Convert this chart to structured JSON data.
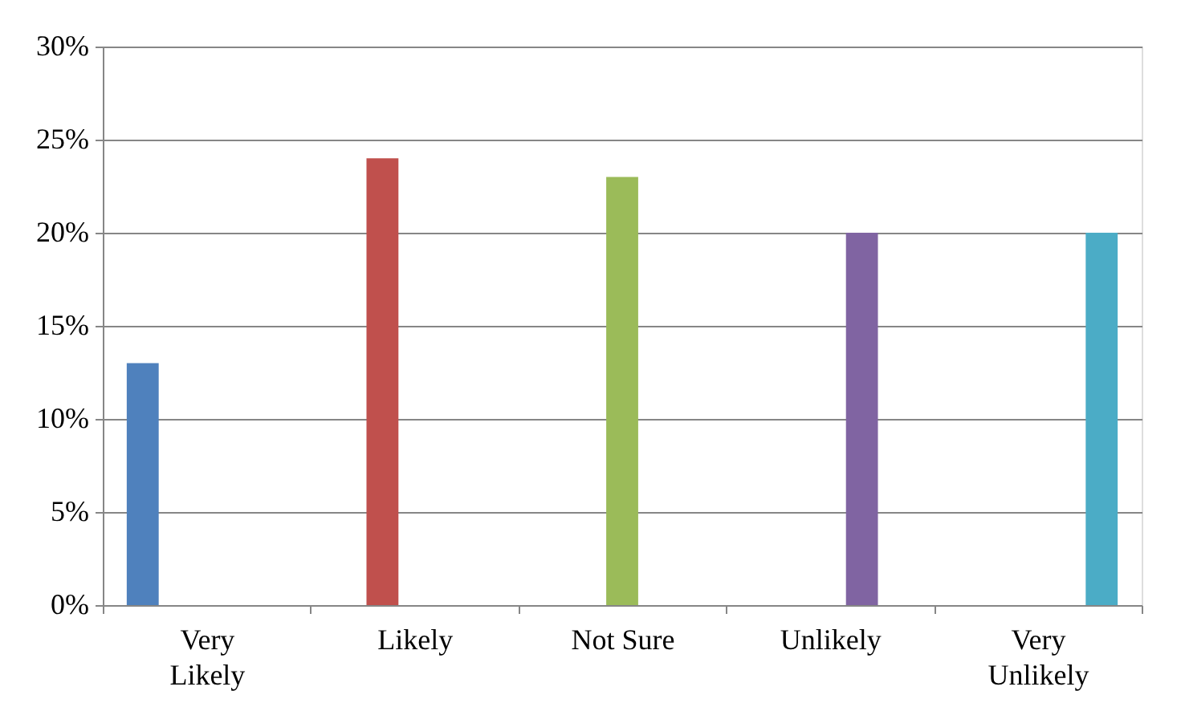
{
  "chart_data": {
    "type": "bar",
    "categories": [
      "Very Likely",
      "Likely",
      "Not Sure",
      "Unlikely",
      "Very Unlikely"
    ],
    "series": [
      {
        "color": "#4f81bd",
        "values": [
          13,
          null,
          null,
          null,
          null
        ]
      },
      {
        "color": "#c0504d",
        "values": [
          null,
          24,
          null,
          null,
          null
        ]
      },
      {
        "color": "#9bbb59",
        "values": [
          null,
          null,
          23,
          null,
          null
        ]
      },
      {
        "color": "#8064a2",
        "values": [
          null,
          null,
          null,
          20,
          null
        ]
      },
      {
        "color": "#4bacc6",
        "values": [
          null,
          null,
          null,
          null,
          20
        ]
      }
    ],
    "ylim": [
      0,
      30
    ],
    "yticks": [
      {
        "value": 0,
        "label": "0%"
      },
      {
        "value": 5,
        "label": "5%"
      },
      {
        "value": 10,
        "label": "10%"
      },
      {
        "value": 15,
        "label": "15%"
      },
      {
        "value": 20,
        "label": "20%"
      },
      {
        "value": 25,
        "label": "25%"
      },
      {
        "value": 30,
        "label": "30%"
      }
    ],
    "grid": "y",
    "legend": false
  }
}
